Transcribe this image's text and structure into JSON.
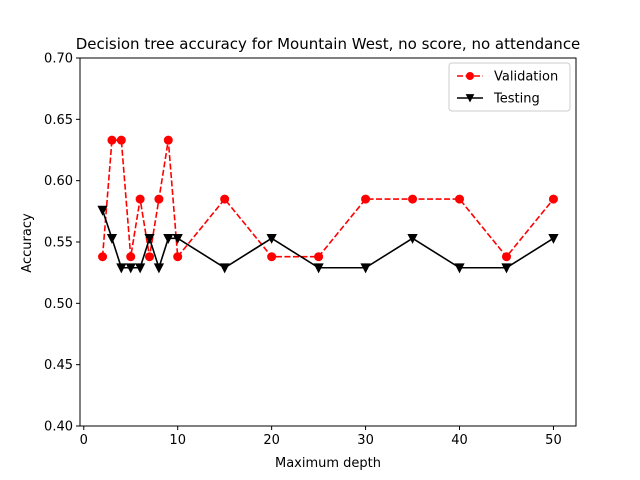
{
  "chart_data": {
    "type": "line",
    "title": "Decision tree accuracy for Mountain West, no score, no attendance",
    "xlabel": "Maximum depth",
    "ylabel": "Accuracy",
    "xlim": [
      -0.4,
      52.4
    ],
    "ylim": [
      0.4,
      0.7
    ],
    "xticks": [
      0,
      10,
      20,
      30,
      40,
      50
    ],
    "xtick_labels": [
      "0",
      "10",
      "20",
      "30",
      "40",
      "50"
    ],
    "yticks": [
      0.4,
      0.45,
      0.5,
      0.55,
      0.6,
      0.65,
      0.7
    ],
    "ytick_labels": [
      "0.40",
      "0.45",
      "0.50",
      "0.55",
      "0.60",
      "0.65",
      "0.70"
    ],
    "grid": false,
    "legend_position": "top-right",
    "x": [
      2,
      3,
      4,
      5,
      6,
      7,
      8,
      9,
      10,
      15,
      20,
      25,
      30,
      35,
      40,
      45,
      50
    ],
    "series": [
      {
        "name": "Validation",
        "color": "#ff0000",
        "linestyle": "dashed",
        "marker": "circle",
        "values": [
          0.538,
          0.633,
          0.633,
          0.538,
          0.585,
          0.538,
          0.585,
          0.633,
          0.538,
          0.585,
          0.538,
          0.538,
          0.585,
          0.585,
          0.585,
          0.538,
          0.585
        ]
      },
      {
        "name": "Testing",
        "color": "#000000",
        "linestyle": "solid",
        "marker": "triangle-down",
        "values": [
          0.576,
          0.553,
          0.529,
          0.529,
          0.529,
          0.553,
          0.529,
          0.553,
          0.553,
          0.529,
          0.553,
          0.529,
          0.529,
          0.553,
          0.529,
          0.529,
          0.553
        ]
      }
    ]
  }
}
